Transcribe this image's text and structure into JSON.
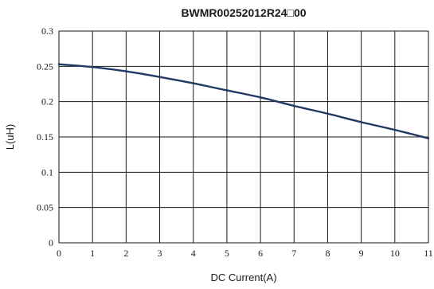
{
  "chart_data": {
    "type": "line",
    "title": "BWMR00252012R24□00",
    "xlabel": "DC Current(A)",
    "ylabel": "L(uH)",
    "xlim": [
      0,
      11
    ],
    "ylim": [
      0,
      0.3
    ],
    "x_ticks": [
      "0",
      "1",
      "2",
      "3",
      "4",
      "5",
      "6",
      "7",
      "8",
      "9",
      "10",
      "11"
    ],
    "y_ticks": [
      "0",
      "0.05",
      "0.1",
      "0.15",
      "0.2",
      "0.25",
      "0.3"
    ],
    "grid": true,
    "legend": "none",
    "line_color": "#1f3864",
    "series": [
      {
        "x": [
          0,
          1,
          2,
          3,
          4,
          5,
          6,
          7,
          8,
          9,
          10,
          11
        ],
        "values": [
          0.253,
          0.249,
          0.243,
          0.235,
          0.226,
          0.216,
          0.206,
          0.194,
          0.183,
          0.171,
          0.16,
          0.148
        ]
      }
    ]
  }
}
